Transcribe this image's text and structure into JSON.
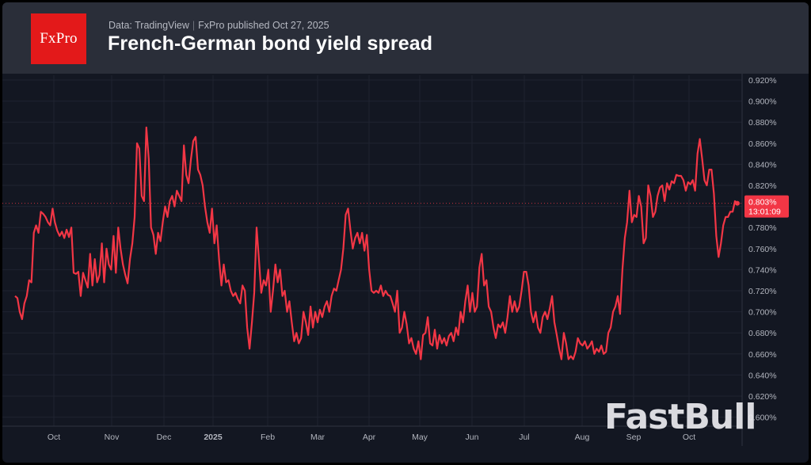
{
  "header": {
    "logo_text": "FxPro",
    "data_source": "Data: TradingView",
    "separator": "|",
    "published": "FxPro published Oct 27,  2025",
    "title": "French-German bond yield spread"
  },
  "watermark": "FastBull",
  "colors": {
    "line": "#f23645",
    "background": "#131722",
    "header": "#2a2e39",
    "logo": "#e3191a",
    "grid": "#1f2330",
    "axis_text": "#b2b5be"
  },
  "chart_data": {
    "type": "line",
    "title": "French-German bond yield spread",
    "xlabel": "",
    "ylabel": "",
    "x_tick_labels": [
      "Oct",
      "Nov",
      "Dec",
      "2025",
      "Feb",
      "Mar",
      "Apr",
      "May",
      "Jun",
      "Jul",
      "Aug",
      "Sep",
      "Oct"
    ],
    "y_tick_labels": [
      "0.600%",
      "0.620%",
      "0.640%",
      "0.660%",
      "0.680%",
      "0.700%",
      "0.720%",
      "0.740%",
      "0.760%",
      "0.780%",
      "0.800%",
      "0.820%",
      "0.840%",
      "0.860%",
      "0.880%",
      "0.900%",
      "0.920%"
    ],
    "ylim": [
      0.6,
      0.92
    ],
    "y_ticks": [
      0.6,
      0.62,
      0.64,
      0.66,
      0.68,
      0.7,
      0.72,
      0.74,
      0.76,
      0.78,
      0.8,
      0.82,
      0.84,
      0.86,
      0.88,
      0.9,
      0.92
    ],
    "grid": true,
    "last_value_label": "0.803%",
    "last_value_countdown": "13:01:09",
    "last_value": 0.803,
    "series": [
      {
        "values": [
          0.715,
          0.713,
          0.7,
          0.693,
          0.708,
          0.715,
          0.73,
          0.728,
          0.775,
          0.782,
          0.775,
          0.795,
          0.793,
          0.79,
          0.785,
          0.782,
          0.798,
          0.785,
          0.777,
          0.772,
          0.776,
          0.77,
          0.778,
          0.771,
          0.78,
          0.737,
          0.736,
          0.738,
          0.715,
          0.737,
          0.73,
          0.723,
          0.755,
          0.725,
          0.75,
          0.728,
          0.735,
          0.765,
          0.728,
          0.76,
          0.745,
          0.74,
          0.772,
          0.737,
          0.78,
          0.76,
          0.745,
          0.735,
          0.727,
          0.75,
          0.765,
          0.79,
          0.86,
          0.855,
          0.81,
          0.805,
          0.875,
          0.845,
          0.78,
          0.773,
          0.755,
          0.775,
          0.767,
          0.785,
          0.8,
          0.79,
          0.805,
          0.81,
          0.8,
          0.815,
          0.81,
          0.805,
          0.858,
          0.83,
          0.822,
          0.845,
          0.862,
          0.866,
          0.835,
          0.83,
          0.82,
          0.8,
          0.785,
          0.775,
          0.798,
          0.765,
          0.782,
          0.75,
          0.725,
          0.745,
          0.728,
          0.73,
          0.72,
          0.715,
          0.718,
          0.712,
          0.708,
          0.725,
          0.72,
          0.685,
          0.665,
          0.69,
          0.718,
          0.78,
          0.75,
          0.718,
          0.73,
          0.725,
          0.74,
          0.7,
          0.72,
          0.745,
          0.728,
          0.74,
          0.715,
          0.72,
          0.7,
          0.71,
          0.69,
          0.672,
          0.68,
          0.67,
          0.675,
          0.7,
          0.69,
          0.678,
          0.705,
          0.685,
          0.7,
          0.69,
          0.702,
          0.695,
          0.705,
          0.71,
          0.7,
          0.715,
          0.722,
          0.72,
          0.73,
          0.74,
          0.76,
          0.792,
          0.798,
          0.778,
          0.76,
          0.77,
          0.775,
          0.765,
          0.775,
          0.758,
          0.773,
          0.74,
          0.72,
          0.718,
          0.72,
          0.718,
          0.725,
          0.715,
          0.72,
          0.716,
          0.715,
          0.708,
          0.7,
          0.72,
          0.68,
          0.685,
          0.7,
          0.688,
          0.67,
          0.675,
          0.665,
          0.66,
          0.672,
          0.655,
          0.678,
          0.68,
          0.695,
          0.67,
          0.668,
          0.683,
          0.665,
          0.678,
          0.67,
          0.675,
          0.668,
          0.677,
          0.68,
          0.672,
          0.685,
          0.678,
          0.7,
          0.69,
          0.71,
          0.725,
          0.7,
          0.718,
          0.7,
          0.705,
          0.742,
          0.755,
          0.725,
          0.73,
          0.705,
          0.7,
          0.685,
          0.675,
          0.688,
          0.685,
          0.69,
          0.68,
          0.695,
          0.715,
          0.7,
          0.71,
          0.7,
          0.705,
          0.72,
          0.738,
          0.738,
          0.725,
          0.7,
          0.69,
          0.7,
          0.685,
          0.68,
          0.695,
          0.7,
          0.693,
          0.703,
          0.715,
          0.69,
          0.678,
          0.665,
          0.655,
          0.68,
          0.67,
          0.655,
          0.658,
          0.655,
          0.662,
          0.675,
          0.67,
          0.668,
          0.672,
          0.665,
          0.668,
          0.672,
          0.66,
          0.665,
          0.662,
          0.668,
          0.66,
          0.662,
          0.68,
          0.685,
          0.7,
          0.705,
          0.715,
          0.698,
          0.74,
          0.77,
          0.785,
          0.815,
          0.785,
          0.792,
          0.79,
          0.81,
          0.8,
          0.765,
          0.77,
          0.82,
          0.81,
          0.79,
          0.795,
          0.81,
          0.818,
          0.82,
          0.805,
          0.822,
          0.816,
          0.824,
          0.822,
          0.83,
          0.829,
          0.829,
          0.825,
          0.815,
          0.823,
          0.821,
          0.825,
          0.815,
          0.85,
          0.864,
          0.845,
          0.825,
          0.82,
          0.835,
          0.835,
          0.812,
          0.772,
          0.752,
          0.765,
          0.782,
          0.79,
          0.79,
          0.795,
          0.795,
          0.805,
          0.803
        ]
      }
    ]
  }
}
